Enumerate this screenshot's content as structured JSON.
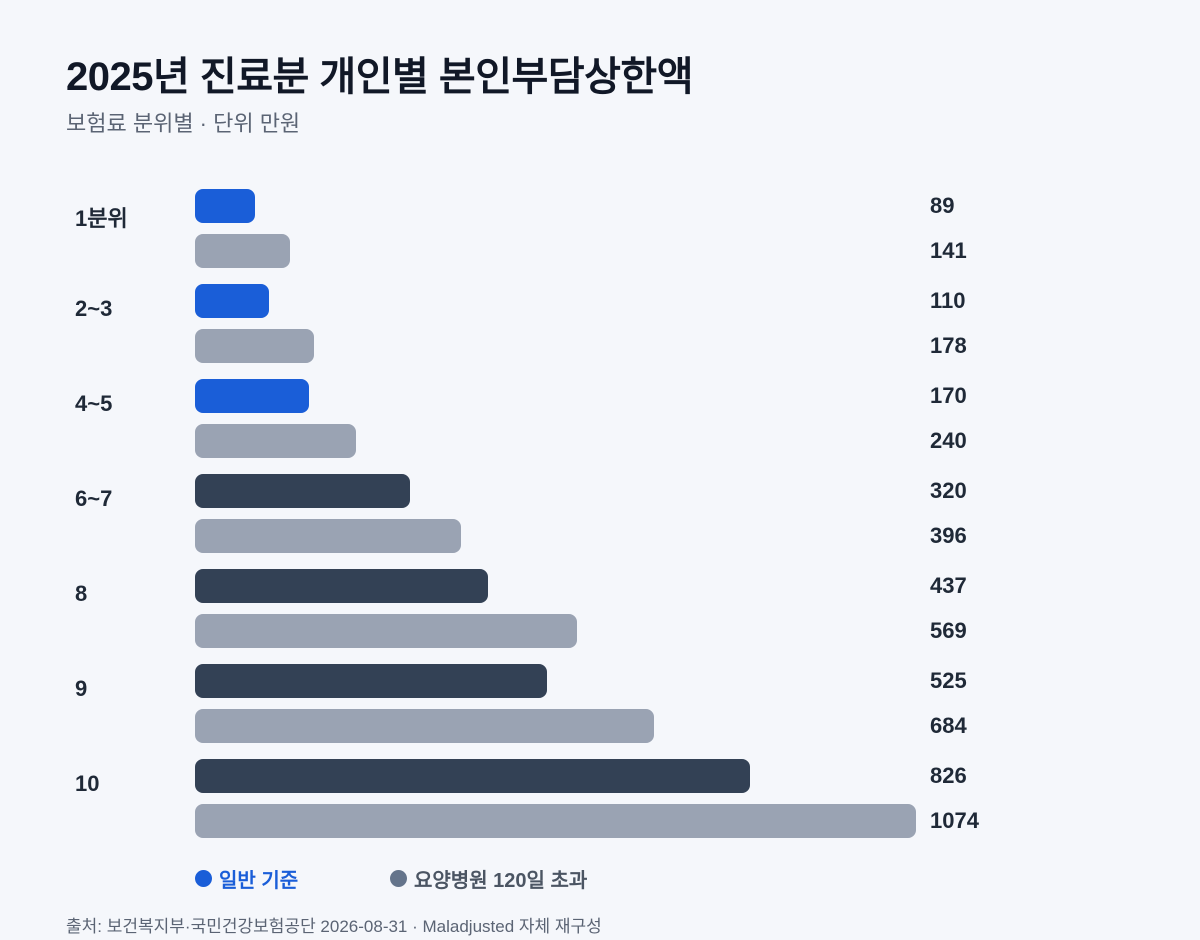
{
  "chart_data": {
    "type": "bar",
    "orientation": "horizontal",
    "title": "2025년 진료분 개인별 본인부담상한액",
    "subtitle": "보험료 분위별 · 단위 만원",
    "categories": [
      "1분위",
      "2~3",
      "4~5",
      "6~7",
      "8",
      "9",
      "10"
    ],
    "series": [
      {
        "name": "일반 기준",
        "values": [
          89,
          110,
          170,
          320,
          437,
          525,
          826
        ]
      },
      {
        "name": "요양병원 120일 초과",
        "values": [
          141,
          178,
          240,
          396,
          569,
          684,
          1074
        ]
      }
    ],
    "xlim": [
      0,
      1074
    ],
    "grid": false,
    "legend_position": "bottom-left",
    "source": "출처: 보건복지부·국민건강보험공단 2026-08-31 · Maladjusted 자체 재구성"
  },
  "colors": {
    "general_low": "#1a5ed8",
    "general_high": "#334155",
    "nursing": "#9aa3b3",
    "legend_general": "#1a5ed8",
    "legend_nursing": "#64748b"
  }
}
